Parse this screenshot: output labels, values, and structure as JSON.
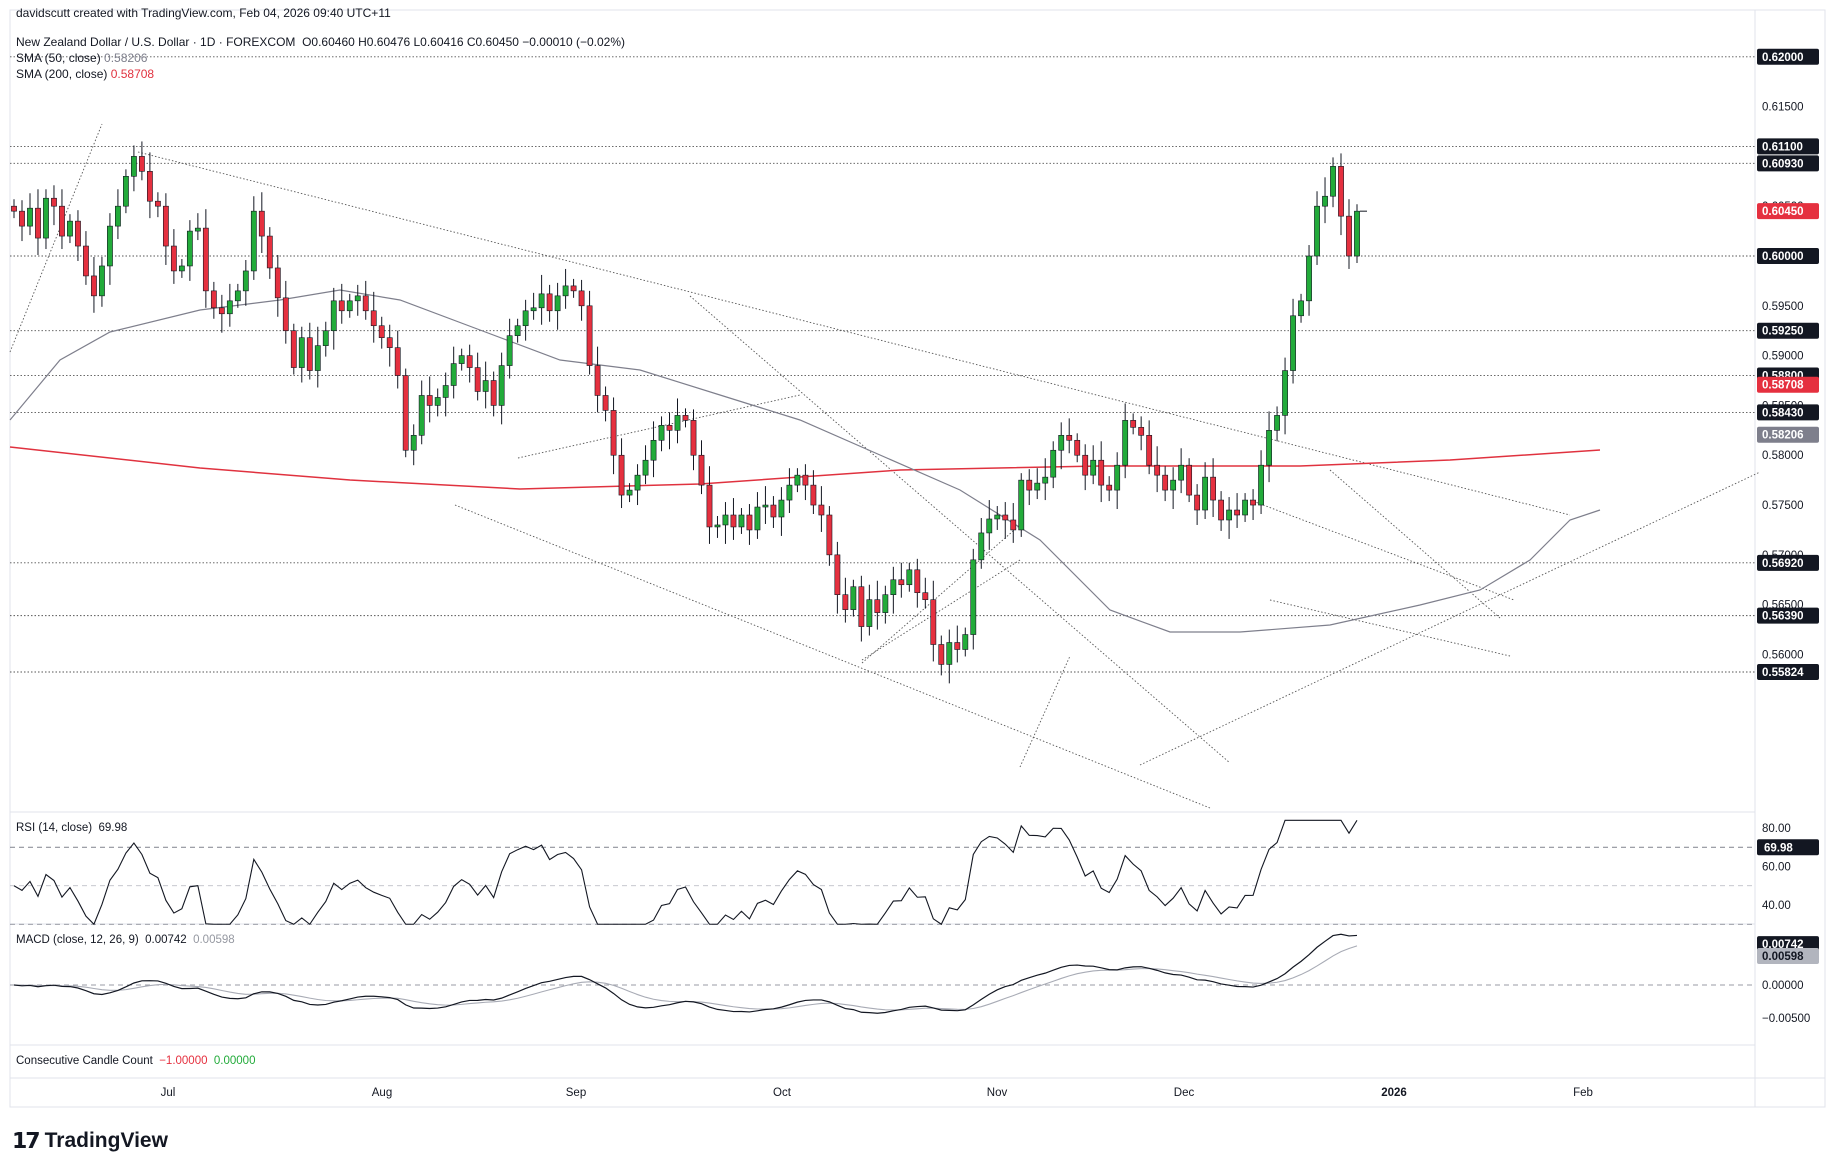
{
  "author_line": "davidscutt created with TradingView.com, Feb 04, 2026 09:40 UTC+11",
  "symbol": {
    "name": "New Zealand Dollar / U.S. Dollar · 1D · FOREXCOM",
    "ohlc": "O0.60460 H0.60476 L0.60416 C0.60450 −0.00010 (−0.02%)"
  },
  "sma50": {
    "label": "SMA (50, close)",
    "value": "0.58206",
    "color": "#7e7f8c"
  },
  "sma200": {
    "label": "SMA (200, close)",
    "value": "0.58708",
    "color": "#e0323f"
  },
  "rsi": {
    "label": "RSI (14, close)",
    "value": "69.98"
  },
  "macd": {
    "label": "MACD (close, 12, 26, 9)",
    "value": "0.00742",
    "signal": "0.00598"
  },
  "ccc": {
    "label": "Consecutive Candle Count",
    "v1": "−1.00000",
    "v2": "0.00000"
  },
  "logo_text": "TradingView",
  "colors": {
    "up": "#22ab3a",
    "down": "#e5303f",
    "text": "#131722"
  },
  "chart_data": {
    "type": "candlestick",
    "price_axis": {
      "ticks": [
        "0.61500",
        "0.61100",
        "0.60930",
        "0.60450",
        "0.60000",
        "0.59500",
        "0.59250",
        "0.59000",
        "0.58800",
        "0.58708",
        "0.58500",
        "0.58430",
        "0.58206",
        "0.58000",
        "0.57500",
        "0.57000",
        "0.56920",
        "0.56500",
        "0.56390",
        "0.56000",
        "0.55824",
        "0.62000"
      ]
    },
    "ylim": [
      0.5555,
      0.6215
    ],
    "x_labels": [
      "Jul",
      "Aug",
      "Sep",
      "Oct",
      "Nov",
      "Dec",
      "2026",
      "Feb"
    ],
    "horizontal_levels": [
      0.62,
      0.611,
      0.6093,
      0.6,
      0.5925,
      0.588,
      0.5843,
      0.5692,
      0.5639,
      0.55824
    ],
    "price_badges": [
      {
        "value": "0.62000",
        "style": "dark"
      },
      {
        "value": "0.61100",
        "style": "dark"
      },
      {
        "value": "0.60930",
        "style": "dark"
      },
      {
        "value": "0.60450",
        "style": "red"
      },
      {
        "value": "0.60000",
        "style": "dark"
      },
      {
        "value": "0.59250",
        "style": "dark"
      },
      {
        "value": "0.58800",
        "style": "dark"
      },
      {
        "value": "0.58708",
        "style": "red"
      },
      {
        "value": "0.58430",
        "style": "dark"
      },
      {
        "value": "0.58206",
        "style": "gray"
      },
      {
        "value": "0.56920",
        "style": "dark"
      },
      {
        "value": "0.56390",
        "style": "dark"
      },
      {
        "value": "0.55824",
        "style": "dark"
      }
    ],
    "closes": [
      0.6045,
      0.603,
      0.6048,
      0.6018,
      0.6058,
      0.605,
      0.602,
      0.6035,
      0.601,
      0.598,
      0.596,
      0.599,
      0.603,
      0.605,
      0.608,
      0.61,
      0.6085,
      0.6055,
      0.605,
      0.601,
      0.5985,
      0.599,
      0.6025,
      0.6028,
      0.5965,
      0.5948,
      0.5942,
      0.5955,
      0.5965,
      0.5985,
      0.6045,
      0.602,
      0.5988,
      0.5958,
      0.5925,
      0.5888,
      0.5918,
      0.5885,
      0.591,
      0.5925,
      0.5955,
      0.5945,
      0.5955,
      0.596,
      0.5945,
      0.593,
      0.5918,
      0.5908,
      0.588,
      0.5805,
      0.582,
      0.586,
      0.585,
      0.5858,
      0.587,
      0.5892,
      0.59,
      0.5888,
      0.5864,
      0.5875,
      0.585,
      0.589,
      0.592,
      0.593,
      0.5945,
      0.5948,
      0.5962,
      0.5945,
      0.596,
      0.597,
      0.5965,
      0.595,
      0.589,
      0.586,
      0.5845,
      0.58,
      0.576,
      0.5765,
      0.578,
      0.5795,
      0.5815,
      0.583,
      0.5825,
      0.584,
      0.5835,
      0.58,
      0.577,
      0.5728,
      0.573,
      0.574,
      0.5728,
      0.574,
      0.5725,
      0.5748,
      0.575,
      0.5738,
      0.5755,
      0.577,
      0.578,
      0.577,
      0.575,
      0.574,
      0.57,
      0.566,
      0.5645,
      0.5668,
      0.5628,
      0.5655,
      0.5642,
      0.566,
      0.5675,
      0.567,
      0.5685,
      0.5662,
      0.5655,
      0.561,
      0.559,
      0.5612,
      0.5605,
      0.562,
      0.5695,
      0.5722,
      0.5736,
      0.574,
      0.5735,
      0.5725,
      0.5775,
      0.5765,
      0.5772,
      0.5778,
      0.5805,
      0.582,
      0.5815,
      0.58,
      0.578,
      0.5795,
      0.577,
      0.5765,
      0.579,
      0.5835,
      0.5828,
      0.582,
      0.579,
      0.578,
      0.5765,
      0.5775,
      0.579,
      0.576,
      0.5745,
      0.5778,
      0.5755,
      0.5735,
      0.5745,
      0.574,
      0.5755,
      0.575,
      0.579,
      0.5825,
      0.584,
      0.5885,
      0.594,
      0.5955,
      0.6,
      0.605,
      0.606,
      0.609,
      0.604,
      0.6,
      0.6045
    ],
    "sma50_path_note": "",
    "rsi_levels": [
      80.0,
      60.0,
      40.0
    ],
    "macd_levels": [
      0.00742,
      0.00598,
      0.0,
      -0.005
    ]
  }
}
